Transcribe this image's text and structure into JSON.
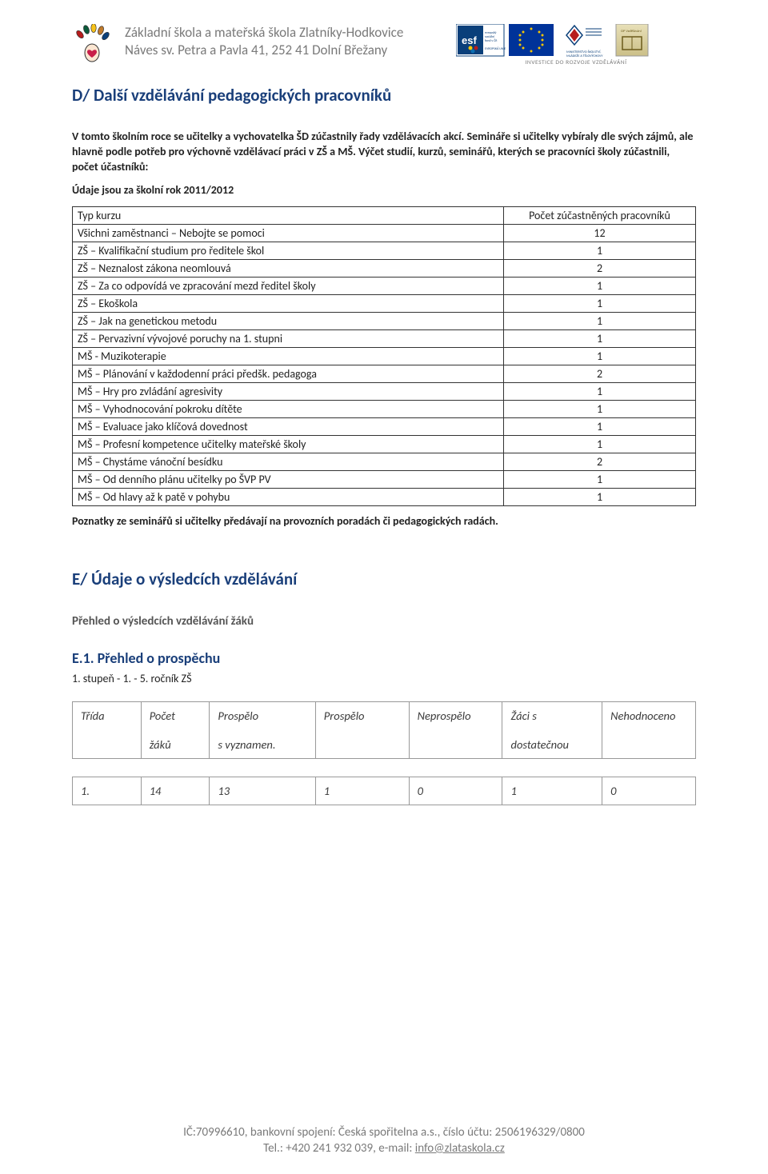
{
  "header": {
    "line1": "Základní škola a mateřská škola Zlatníky-Hodkovice",
    "line2": "Náves sv. Petra a Pavla 41, 252 41 Dolní Břežany"
  },
  "sectionD": {
    "title": "D/ Další vzdělávání pedagogických pracovníků",
    "para": "V tomto školním roce se učitelky a vychovatelka ŠD zúčastnily řady vzdělávacích akcí. Semináře si učitelky vybíraly dle svých zájmů, ale hlavně podle potřeb pro výchovně vzdělávací práci v ZŠ a MŠ. Výčet studií, kurzů, seminářů, kterých se pracovníci školy zúčastnili, počet účastníků:",
    "intro2": "Údaje jsou za školní rok 2011/2012",
    "col_type": "Typ kurzu",
    "col_count": "Počet zúčastněných pracovníků",
    "rows": [
      {
        "name": "Všichni zaměstnanci – Nebojte se pomoci",
        "n": "12"
      },
      {
        "name": "ZŠ – Kvalifikační studium pro ředitele škol",
        "n": "1"
      },
      {
        "name": "ZŠ – Neznalost zákona neomlouvá",
        "n": "2"
      },
      {
        "name": "ZŠ – Za co odpovídá ve zpracování mezd ředitel školy",
        "n": "1"
      },
      {
        "name": "ZŠ – Ekoškola",
        "n": "1"
      },
      {
        "name": "ZŠ – Jak na genetickou metodu",
        "n": "1"
      },
      {
        "name": "ZŠ – Pervazivní vývojové poruchy na 1. stupni",
        "n": "1"
      },
      {
        "name": "MŠ - Muzikoterapie",
        "n": "1"
      },
      {
        "name": "MŠ – Plánování v každodenní práci předšk. pedagoga",
        "n": "2"
      },
      {
        "name": "MŠ – Hry pro zvládání agresivity",
        "n": "1"
      },
      {
        "name": "MŠ – Vyhodnocování pokroku dítěte",
        "n": "1"
      },
      {
        "name": "MŠ – Evaluace jako klíčová dovednost",
        "n": "1"
      },
      {
        "name": "MŠ – Profesní kompetence učitelky mateřské školy",
        "n": "1"
      },
      {
        "name": "MŠ – Chystáme vánoční besídku",
        "n": "2"
      },
      {
        "name": "MŠ – Od denního plánu učitelky po ŠVP PV",
        "n": "1"
      },
      {
        "name": "MŠ – Od hlavy až k patě v pohybu",
        "n": "1"
      }
    ],
    "outro": "Poznatky ze seminářů si učitelky předávají na provozních poradách či pedagogických radách."
  },
  "sectionE": {
    "title": "E/ Údaje o výsledcích vzdělávání",
    "overview": "Přehled o výsledcích vzdělávání žáků",
    "sub1_title": "E.1. Přehled o prospěchu",
    "sub1_caption": "1. stupeň - 1. - 5. ročník ZŠ",
    "grade_header": {
      "c1a": "Třída",
      "c2a": "Počet",
      "c3a": "Prospělo",
      "c4a": "Prospělo",
      "c5a": "Neprospělo",
      "c6a": "Žáci s",
      "c7a": "Nehodnoceno",
      "c2b": "žáků",
      "c3b": "s vyznamen.",
      "c6b": "dostatečnou"
    },
    "grade_row": {
      "c1": "1.",
      "c2": "14",
      "c3": "13",
      "c4": "1",
      "c5": "0",
      "c6": "1",
      "c7": "0"
    }
  },
  "footer": {
    "line1": "IČ:70996610, bankovní spojení: Česká spořitelna a.s., číslo účtu: 2506196329/0800",
    "line2a": "Tel.: +420 241 932 039, e-mail: ",
    "line2b": "info@zlataskola.cz"
  },
  "logos": {
    "hand_colors": [
      "#b71c1c",
      "#0b5a3a",
      "#f6c21a",
      "#c07a2a",
      "#0a3f7a"
    ],
    "heart_color": "#c81e4a",
    "esf_bg": "#0a3f7a",
    "eu_blue": "#003399",
    "eu_star": "#f7c600",
    "msmt_blue": "#0a3f7a",
    "msmt_red": "#b71c1c",
    "op_grad_top": "#e8e0b8",
    "op_grad_bottom": "#cbbf88",
    "banner_text": "INVESTICE DO ROZVOJE VZDĚLÁVÁNÍ"
  }
}
